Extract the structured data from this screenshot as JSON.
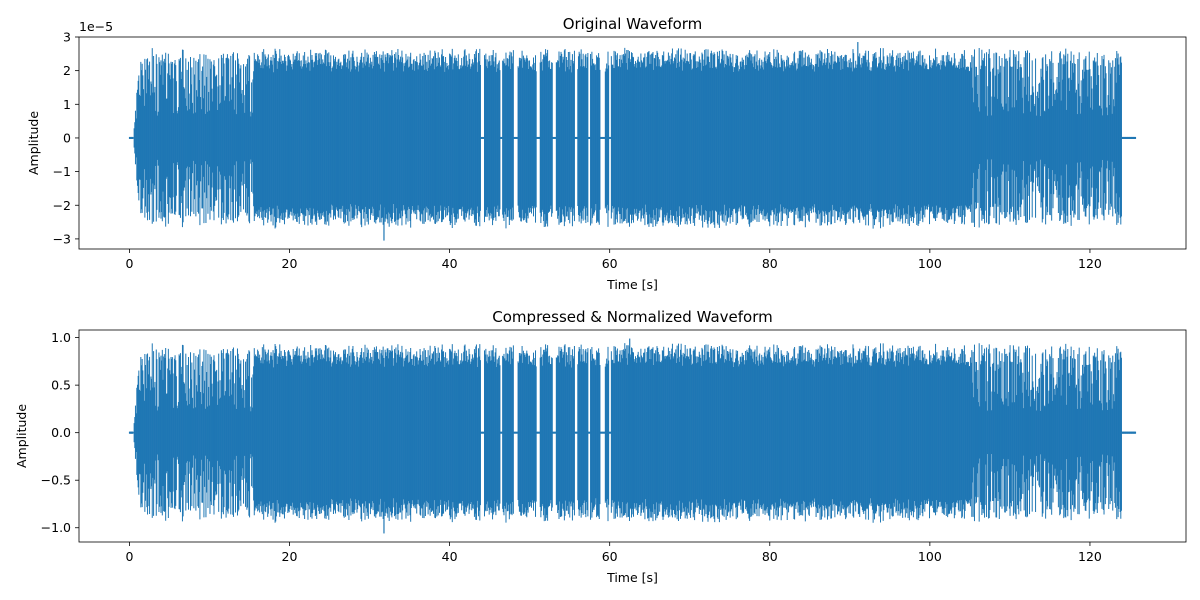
{
  "chart_data": [
    {
      "type": "line",
      "title": "Original Waveform",
      "xlabel": "Time [s]",
      "ylabel": "Amplitude",
      "offset_text": "1e−5",
      "xlim": [
        -6.3,
        132.0
      ],
      "ylim": [
        -3.3,
        3.0
      ],
      "xticks": [
        0,
        20,
        40,
        60,
        80,
        100,
        120
      ],
      "yticks": [
        -3,
        -2,
        -1,
        0,
        1,
        2,
        3
      ],
      "ytick_labels": [
        "−3",
        "−2",
        "−1",
        "0",
        "1",
        "2",
        "3"
      ],
      "grid": false,
      "color": "#1f77b4",
      "envelope_scale": 2.7,
      "spikes": [
        {
          "x": 31.8,
          "y": -3.05
        },
        {
          "x": 91.0,
          "y": 2.85
        }
      ]
    },
    {
      "type": "line",
      "title": "Compressed & Normalized Waveform",
      "xlabel": "Time [s]",
      "ylabel": "Amplitude",
      "offset_text": "",
      "xlim": [
        -6.3,
        132.0
      ],
      "ylim": [
        -1.15,
        1.08
      ],
      "xticks": [
        0,
        20,
        40,
        60,
        80,
        100,
        120
      ],
      "yticks": [
        -1.0,
        -0.5,
        0.0,
        0.5,
        1.0
      ],
      "ytick_labels": [
        "−1.0",
        "−0.5",
        "0.0",
        "0.5",
        "1.0"
      ],
      "grid": false,
      "color": "#1f77b4",
      "envelope_scale": 0.95,
      "spikes": [
        {
          "x": 31.8,
          "y": -1.06
        },
        {
          "x": 62.5,
          "y": 0.99
        }
      ]
    }
  ],
  "waveform": {
    "duration": 125.7,
    "signal_start": 0.5,
    "signal_end": 124.0,
    "gaps": [
      [
        43.9,
        44.3
      ],
      [
        46.3,
        46.6
      ],
      [
        48.0,
        48.5
      ],
      [
        50.9,
        51.3
      ],
      [
        52.9,
        53.3
      ],
      [
        55.6,
        56.0
      ],
      [
        57.3,
        57.6
      ],
      [
        58.8,
        59.4
      ],
      [
        59.9,
        60.2
      ]
    ],
    "sparse_regions": [
      [
        0.8,
        15.5
      ],
      [
        105.3,
        124.0
      ]
    ]
  }
}
